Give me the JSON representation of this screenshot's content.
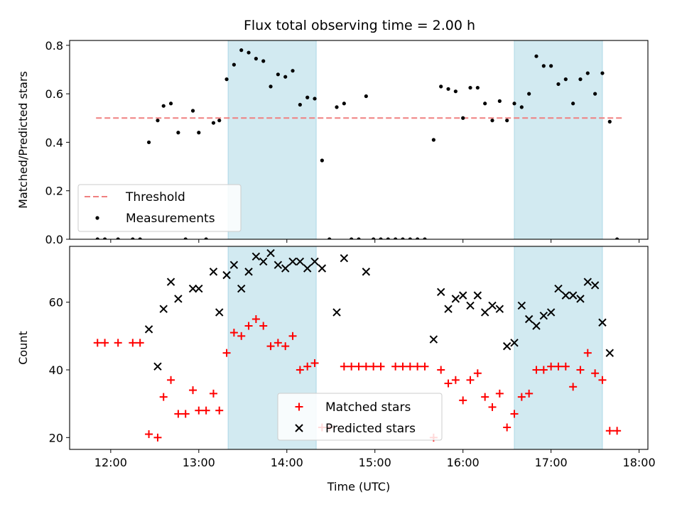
{
  "figure_title": "Flux total observing time = 2.00 h",
  "colors": {
    "shade": "#add8e6",
    "threshold": "#f08080",
    "measurements": "#000000",
    "matched": "#ff0000",
    "predicted": "#000000"
  },
  "chart_data": [
    {
      "type": "scatter",
      "title": "Flux total observing time = 2.00 h",
      "xlabel": "",
      "ylabel": "Matched/Predicted stars",
      "xlim": [
        "11:32",
        "18:06"
      ],
      "ylim": [
        0,
        0.82
      ],
      "x_ticks": [
        "12:00",
        "13:00",
        "14:00",
        "15:00",
        "16:00",
        "17:00",
        "18:00"
      ],
      "y_ticks": [
        "0.0",
        "0.2",
        "0.4",
        "0.6",
        "0.8"
      ],
      "shaded_intervals": [
        [
          "13:20",
          "14:20"
        ],
        [
          "16:35",
          "17:35"
        ]
      ],
      "threshold": {
        "name": "Threshold",
        "value": 0.5,
        "x_range": [
          "11:50",
          "17:50"
        ]
      },
      "legend_position": "lower-left",
      "series": [
        {
          "name": "Measurements",
          "points": [
            [
              "11:51",
              0
            ],
            [
              "11:56",
              0
            ],
            [
              "12:05",
              0
            ],
            [
              "12:15",
              0
            ],
            [
              "12:20",
              0
            ],
            [
              "12:26",
              0.4
            ],
            [
              "12:32",
              0.49
            ],
            [
              "12:36",
              0.55
            ],
            [
              "12:41",
              0.56
            ],
            [
              "12:46",
              0.44
            ],
            [
              "12:51",
              0
            ],
            [
              "12:56",
              0.53
            ],
            [
              "13:00",
              0.44
            ],
            [
              "13:05",
              0
            ],
            [
              "13:10",
              0.48
            ],
            [
              "13:14",
              0.49
            ],
            [
              "13:19",
              0.66
            ],
            [
              "13:24",
              0.72
            ],
            [
              "13:29",
              0.78
            ],
            [
              "13:34",
              0.77
            ],
            [
              "13:39",
              0.745
            ],
            [
              "13:44",
              0.735
            ],
            [
              "13:49",
              0.63
            ],
            [
              "13:54",
              0.68
            ],
            [
              "13:59",
              0.67
            ],
            [
              "14:04",
              0.695
            ],
            [
              "14:09",
              0.555
            ],
            [
              "14:14",
              0.585
            ],
            [
              "14:19",
              0.58
            ],
            [
              "14:24",
              0.325
            ],
            [
              "14:29",
              0
            ],
            [
              "14:34",
              0.545
            ],
            [
              "14:39",
              0.56
            ],
            [
              "14:44",
              0
            ],
            [
              "14:49",
              0
            ],
            [
              "14:54",
              0.59
            ],
            [
              "14:59",
              0
            ],
            [
              "15:04",
              0
            ],
            [
              "15:09",
              0
            ],
            [
              "15:14",
              0
            ],
            [
              "15:19",
              0
            ],
            [
              "15:24",
              0
            ],
            [
              "15:29",
              0
            ],
            [
              "15:34",
              0
            ],
            [
              "15:40",
              0.41
            ],
            [
              "15:45",
              0.63
            ],
            [
              "15:50",
              0.62
            ],
            [
              "15:55",
              0.61
            ],
            [
              "16:00",
              0.5
            ],
            [
              "16:05",
              0.625
            ],
            [
              "16:10",
              0.625
            ],
            [
              "16:15",
              0.56
            ],
            [
              "16:20",
              0.49
            ],
            [
              "16:25",
              0.57
            ],
            [
              "16:30",
              0.49
            ],
            [
              "16:35",
              0.56
            ],
            [
              "16:40",
              0.545
            ],
            [
              "16:45",
              0.6
            ],
            [
              "16:50",
              0.755
            ],
            [
              "16:55",
              0.715
            ],
            [
              "17:00",
              0.715
            ],
            [
              "17:05",
              0.64
            ],
            [
              "17:10",
              0.66
            ],
            [
              "17:15",
              0.56
            ],
            [
              "17:20",
              0.66
            ],
            [
              "17:25",
              0.685
            ],
            [
              "17:30",
              0.6
            ],
            [
              "17:35",
              0.685
            ],
            [
              "17:40",
              0.485
            ],
            [
              "17:45",
              0
            ]
          ]
        }
      ]
    },
    {
      "type": "scatter",
      "title": "",
      "xlabel": "Time (UTC)",
      "ylabel": "Count",
      "xlim": [
        "11:32",
        "18:06"
      ],
      "ylim": [
        16.5,
        76.5
      ],
      "x_ticks": [
        "12:00",
        "13:00",
        "14:00",
        "15:00",
        "16:00",
        "17:00",
        "18:00"
      ],
      "y_ticks": [
        "20",
        "40",
        "60"
      ],
      "shaded_intervals": [
        [
          "13:20",
          "14:20"
        ],
        [
          "16:35",
          "17:35"
        ]
      ],
      "legend_position": "lower-center",
      "series": [
        {
          "name": "Matched stars",
          "marker": "plus",
          "points": [
            [
              "11:51",
              48
            ],
            [
              "11:56",
              48
            ],
            [
              "12:05",
              48
            ],
            [
              "12:15",
              48
            ],
            [
              "12:20",
              48
            ],
            [
              "12:26",
              21
            ],
            [
              "12:32",
              20
            ],
            [
              "12:36",
              32
            ],
            [
              "12:41",
              37
            ],
            [
              "12:46",
              27
            ],
            [
              "12:51",
              27
            ],
            [
              "12:56",
              34
            ],
            [
              "13:00",
              28
            ],
            [
              "13:05",
              28
            ],
            [
              "13:10",
              33
            ],
            [
              "13:14",
              28
            ],
            [
              "13:19",
              45
            ],
            [
              "13:24",
              51
            ],
            [
              "13:29",
              50
            ],
            [
              "13:34",
              53
            ],
            [
              "13:39",
              55
            ],
            [
              "13:44",
              53
            ],
            [
              "13:49",
              47
            ],
            [
              "13:54",
              48
            ],
            [
              "13:59",
              47
            ],
            [
              "14:04",
              50
            ],
            [
              "14:09",
              40
            ],
            [
              "14:14",
              41
            ],
            [
              "14:19",
              42
            ],
            [
              "14:24",
              23
            ],
            [
              "14:29",
              23
            ],
            [
              "14:39",
              41
            ],
            [
              "14:44",
              41
            ],
            [
              "14:49",
              41
            ],
            [
              "14:54",
              41
            ],
            [
              "14:59",
              41
            ],
            [
              "15:04",
              41
            ],
            [
              "15:14",
              41
            ],
            [
              "15:19",
              41
            ],
            [
              "15:24",
              41
            ],
            [
              "15:29",
              41
            ],
            [
              "15:34",
              41
            ],
            [
              "15:40",
              20
            ],
            [
              "15:45",
              40
            ],
            [
              "15:50",
              36
            ],
            [
              "15:55",
              37
            ],
            [
              "16:00",
              31
            ],
            [
              "16:05",
              37
            ],
            [
              "16:10",
              39
            ],
            [
              "16:15",
              32
            ],
            [
              "16:20",
              29
            ],
            [
              "16:25",
              33
            ],
            [
              "16:30",
              23
            ],
            [
              "16:35",
              27
            ],
            [
              "16:40",
              32
            ],
            [
              "16:45",
              33
            ],
            [
              "16:50",
              40
            ],
            [
              "16:55",
              40
            ],
            [
              "17:00",
              41
            ],
            [
              "17:05",
              41
            ],
            [
              "17:10",
              41
            ],
            [
              "17:15",
              35
            ],
            [
              "17:20",
              40
            ],
            [
              "17:25",
              45
            ],
            [
              "17:30",
              39
            ],
            [
              "17:35",
              37
            ],
            [
              "17:40",
              22
            ],
            [
              "17:45",
              22
            ]
          ]
        },
        {
          "name": "Predicted stars",
          "marker": "x",
          "points": [
            [
              "12:26",
              52
            ],
            [
              "12:32",
              41
            ],
            [
              "12:36",
              58
            ],
            [
              "12:41",
              66
            ],
            [
              "12:46",
              61
            ],
            [
              "12:56",
              64
            ],
            [
              "13:00",
              64
            ],
            [
              "13:10",
              69
            ],
            [
              "13:14",
              57
            ],
            [
              "13:19",
              68
            ],
            [
              "13:24",
              71
            ],
            [
              "13:29",
              64
            ],
            [
              "13:34",
              69
            ],
            [
              "13:39",
              73.5
            ],
            [
              "13:44",
              72
            ],
            [
              "13:49",
              74.5
            ],
            [
              "13:54",
              71
            ],
            [
              "13:59",
              70
            ],
            [
              "14:04",
              72
            ],
            [
              "14:09",
              72
            ],
            [
              "14:14",
              70
            ],
            [
              "14:19",
              72
            ],
            [
              "14:24",
              70
            ],
            [
              "14:34",
              57
            ],
            [
              "14:39",
              73
            ],
            [
              "14:54",
              69
            ],
            [
              "15:40",
              49
            ],
            [
              "15:45",
              63
            ],
            [
              "15:50",
              58
            ],
            [
              "15:55",
              61
            ],
            [
              "16:00",
              62
            ],
            [
              "16:05",
              59
            ],
            [
              "16:10",
              62
            ],
            [
              "16:15",
              57
            ],
            [
              "16:20",
              59
            ],
            [
              "16:25",
              58
            ],
            [
              "16:30",
              47
            ],
            [
              "16:35",
              48
            ],
            [
              "16:40",
              59
            ],
            [
              "16:45",
              55
            ],
            [
              "16:50",
              53
            ],
            [
              "16:55",
              56
            ],
            [
              "17:00",
              57
            ],
            [
              "17:05",
              64
            ],
            [
              "17:10",
              62
            ],
            [
              "17:15",
              62
            ],
            [
              "17:20",
              61
            ],
            [
              "17:25",
              66
            ],
            [
              "17:30",
              65
            ],
            [
              "17:35",
              54
            ],
            [
              "17:40",
              45
            ]
          ]
        }
      ]
    }
  ]
}
